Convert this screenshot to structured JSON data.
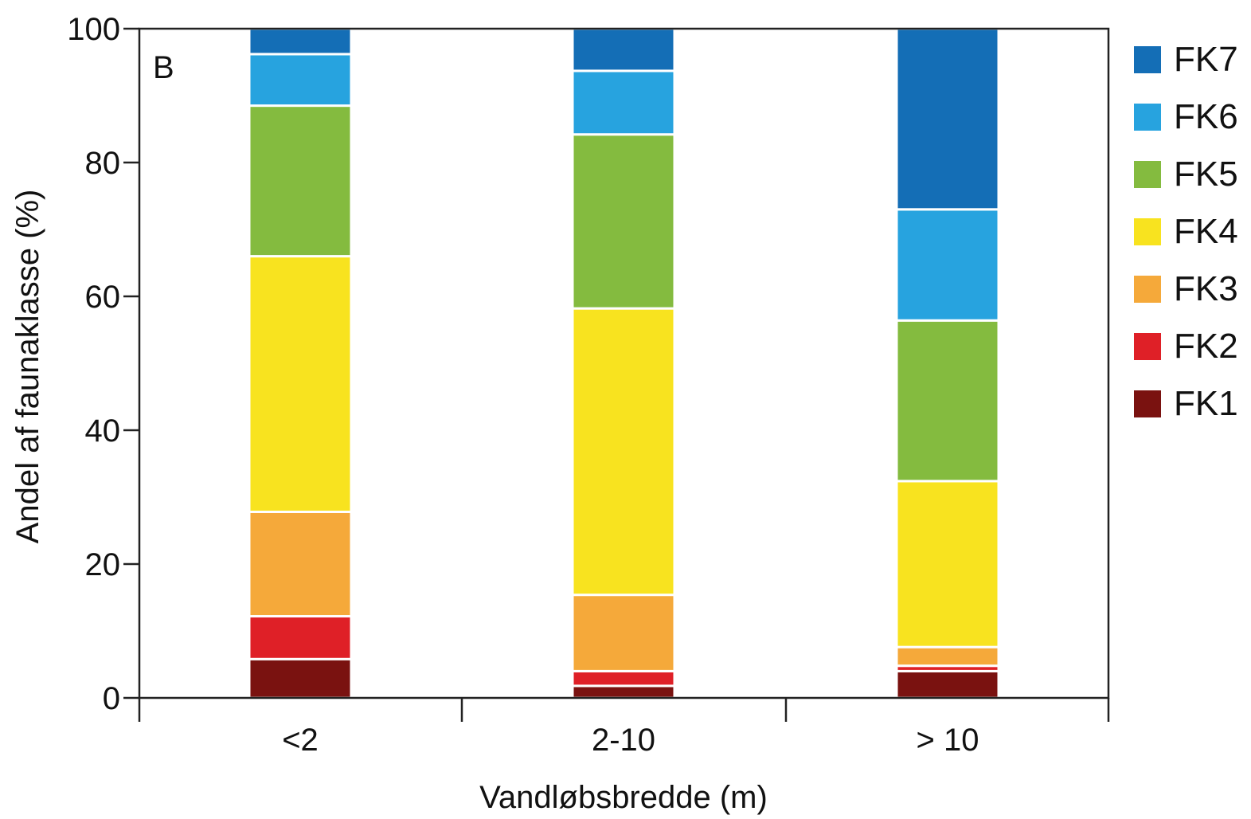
{
  "chart_data": {
    "type": "bar",
    "stacked": true,
    "panel_label": "B",
    "xlabel": "Vandløbsbredde (m)",
    "ylabel": "Andel af faunaklasse (%)",
    "ylim": [
      0,
      100
    ],
    "yticks": [
      0,
      20,
      40,
      60,
      80,
      100
    ],
    "categories": [
      "<2",
      "2-10",
      "> 10"
    ],
    "series": [
      {
        "name": "FK1",
        "color": "#7a1210",
        "values": [
          5.8,
          1.8,
          4.0
        ]
      },
      {
        "name": "FK2",
        "color": "#df2027",
        "values": [
          6.4,
          2.2,
          0.8
        ]
      },
      {
        "name": "FK3",
        "color": "#f5a93a",
        "values": [
          15.6,
          11.4,
          2.8
        ]
      },
      {
        "name": "FK4",
        "color": "#f8e31f",
        "values": [
          38.2,
          42.8,
          24.8
        ]
      },
      {
        "name": "FK5",
        "color": "#84bb3f",
        "values": [
          22.5,
          26.0,
          24.0
        ]
      },
      {
        "name": "FK6",
        "color": "#27a3df",
        "values": [
          7.7,
          9.5,
          16.6
        ]
      },
      {
        "name": "FK7",
        "color": "#146eb6",
        "values": [
          3.8,
          6.3,
          27.0
        ]
      }
    ],
    "legend": {
      "position": "right",
      "order": [
        "FK7",
        "FK6",
        "FK5",
        "FK4",
        "FK3",
        "FK2",
        "FK1"
      ]
    },
    "grid": false
  }
}
